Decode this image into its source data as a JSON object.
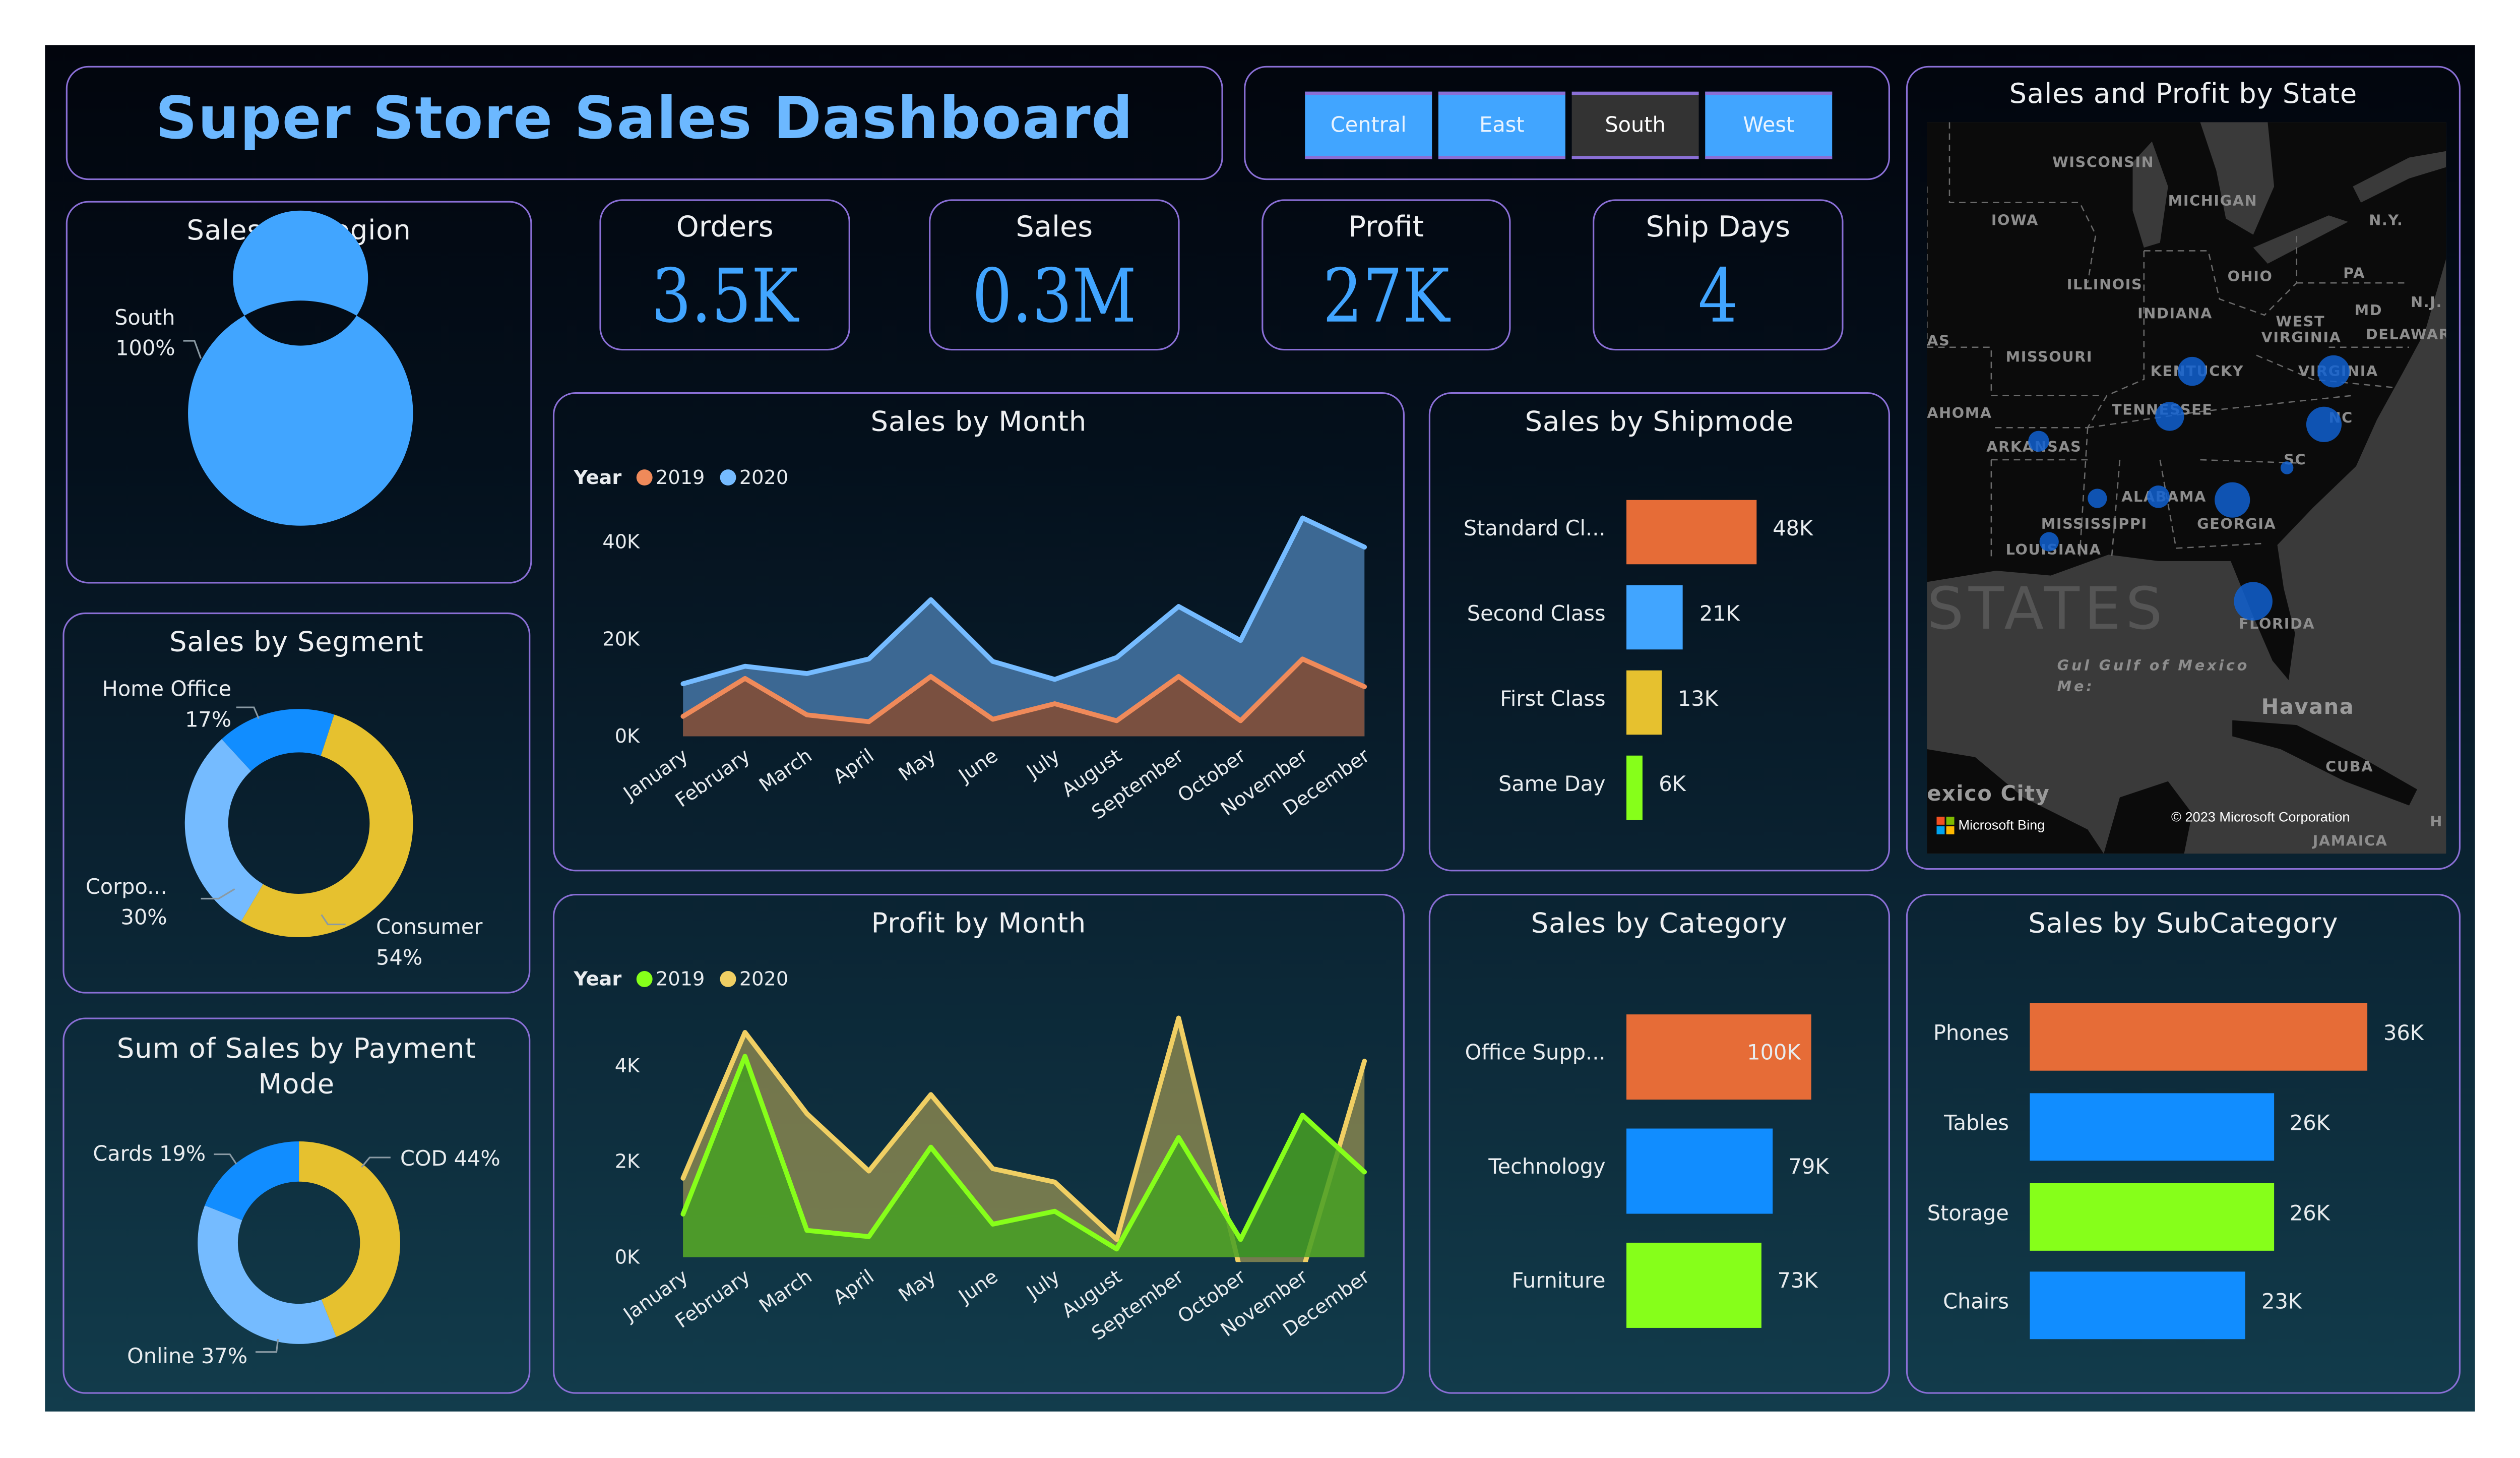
{
  "header": {
    "title": "Super Store Sales Dashboard"
  },
  "slicer": {
    "options": [
      "Central",
      "East",
      "South",
      "West"
    ],
    "selected": "South"
  },
  "kpis": [
    {
      "label": "Orders",
      "value": "3.5K"
    },
    {
      "label": "Sales",
      "value": "0.3M"
    },
    {
      "label": "Profit",
      "value": "27K"
    },
    {
      "label": "Ship Days",
      "value": "4"
    }
  ],
  "colors": {
    "accent": "#41a5ff",
    "border": "#8a6fd6",
    "title": "#6cb8ff",
    "orange": "#e66c37",
    "blue": "#118dff",
    "light_blue": "#75bbff",
    "yellow": "#e6c12f",
    "green": "#86ff1a"
  },
  "map": {
    "title": "Sales and Profit by State",
    "labels": [
      "WISCONSIN",
      "MICHIGAN",
      "IOWA",
      "N.Y.",
      "OHIO",
      "PA",
      "STATES",
      "ILLINOIS",
      "INDIANA",
      "WEST",
      "VIRGINIA",
      "MD",
      "N.J.",
      "DELAWARE",
      "AS",
      "MISSOURI",
      "KENTUCKY",
      "VIRGINIA",
      "AHOMA",
      "TENNESSEE",
      "NC",
      "ARKANSAS",
      "SC",
      "ALABAMA",
      "MISSISSIPPI",
      "GEORGIA",
      "LOUISIANA",
      "FLORIDA",
      "Gul Gulf of Mexico",
      "Me:",
      "Havana",
      "CUBA",
      "exico City",
      "JAMAICA",
      "H"
    ],
    "bubble_states": [
      "Kentucky",
      "Virginia",
      "Tennessee",
      "North Carolina",
      "Arkansas",
      "South Carolina",
      "Mississippi",
      "Alabama",
      "Georgia",
      "Louisiana",
      "Florida"
    ],
    "attribution_logo": "Microsoft Bing",
    "copyright": "© 2023 Microsoft Corporation",
    "bubble_color": "#1060d0"
  },
  "chart_data": [
    {
      "id": "region",
      "type": "pie",
      "title": "Sales by Region",
      "slices": [
        {
          "label": "South",
          "pct_label": "100%",
          "value": 100,
          "color": "#41a5ff"
        }
      ]
    },
    {
      "id": "segment",
      "type": "pie",
      "title": "Sales by Segment",
      "slices": [
        {
          "label": "Consumer",
          "pct_label": "54%",
          "value": 54,
          "color": "#e6c12f"
        },
        {
          "label": "Corpo...",
          "pct_label": "30%",
          "value": 30,
          "color": "#75bbff"
        },
        {
          "label": "Home Office",
          "pct_label": "17%",
          "value": 17,
          "color": "#118dff"
        }
      ]
    },
    {
      "id": "payment",
      "type": "pie",
      "title": "Sum of Sales by Payment Mode",
      "slices": [
        {
          "label": "COD 44%",
          "value": 44,
          "color": "#e6c12f"
        },
        {
          "label": "Online 37%",
          "value": 37,
          "color": "#75bbff"
        },
        {
          "label": "Cards 19%",
          "value": 19,
          "color": "#118dff"
        }
      ]
    },
    {
      "id": "sales_month",
      "type": "area",
      "title": "Sales by Month",
      "legend_title": "Year",
      "categories": [
        "January",
        "February",
        "March",
        "April",
        "May",
        "June",
        "July",
        "August",
        "September",
        "October",
        "November",
        "December"
      ],
      "yticks": [
        "0K",
        "20K",
        "40K"
      ],
      "ylim": [
        0,
        40000
      ],
      "series": [
        {
          "name": "2020",
          "color": "#75bbff",
          "fill": "#3c6893",
          "values": [
            10800,
            14400,
            12900,
            15900,
            28100,
            15400,
            11700,
            16200,
            26700,
            19700,
            44900,
            38900
          ]
        },
        {
          "name": "2019",
          "color": "#ef8a5a",
          "fill": "#7a5040",
          "values": [
            4100,
            11900,
            4400,
            3000,
            12300,
            3500,
            6700,
            3200,
            12300,
            3200,
            15900,
            10200
          ]
        }
      ],
      "legend_order": [
        "2019",
        "2020"
      ]
    },
    {
      "id": "profit_month",
      "type": "area",
      "title": "Profit by Month",
      "legend_title": "Year",
      "categories": [
        "January",
        "February",
        "March",
        "April",
        "May",
        "June",
        "July",
        "August",
        "September",
        "October",
        "November",
        "December"
      ],
      "yticks": [
        "0K",
        "2K",
        "4K"
      ],
      "ylim": [
        0,
        4000
      ],
      "series": [
        {
          "name": "2020",
          "color": "#f0cf63",
          "fill": "rgba(200,180,90,0.55)",
          "values": [
            1650,
            4700,
            3000,
            1800,
            3400,
            1850,
            1570,
            370,
            5000,
            -300,
            -300,
            4100
          ]
        },
        {
          "name": "2019",
          "color": "#86ff1a",
          "fill": "rgba(70,160,35,0.85)",
          "values": [
            900,
            4200,
            560,
            430,
            2300,
            690,
            960,
            170,
            2500,
            370,
            2970,
            1780
          ]
        }
      ],
      "legend_order": [
        "2019",
        "2020"
      ]
    },
    {
      "id": "shipmode",
      "type": "bar",
      "title": "Sales by Shipmode",
      "categories": [
        "Standard Cl...",
        "Second Class",
        "First Class",
        "Same Day"
      ],
      "values": [
        48000,
        21000,
        13000,
        6000
      ],
      "labels": [
        "48K",
        "21K",
        "13K",
        "6K"
      ],
      "colors": [
        "#e66c37",
        "#41a5ff",
        "#e6c12f",
        "#86ff1a"
      ]
    },
    {
      "id": "category",
      "type": "bar",
      "title": "Sales by Category",
      "categories": [
        "Office Supp...",
        "Technology",
        "Furniture"
      ],
      "values": [
        100000,
        79000,
        73000
      ],
      "labels": [
        "100K",
        "79K",
        "73K"
      ],
      "colors": [
        "#e66c37",
        "#118dff",
        "#86ff1a"
      ]
    },
    {
      "id": "subcategory",
      "type": "bar",
      "title": "Sales by SubCategory",
      "categories": [
        "Phones",
        "Tables",
        "Storage",
        "Chairs"
      ],
      "values": [
        36000,
        26000,
        26000,
        23000
      ],
      "labels": [
        "36K",
        "26K",
        "26K",
        "23K"
      ],
      "colors": [
        "#e66c37",
        "#118dff",
        "#86ff1a",
        "#118dff"
      ]
    }
  ]
}
